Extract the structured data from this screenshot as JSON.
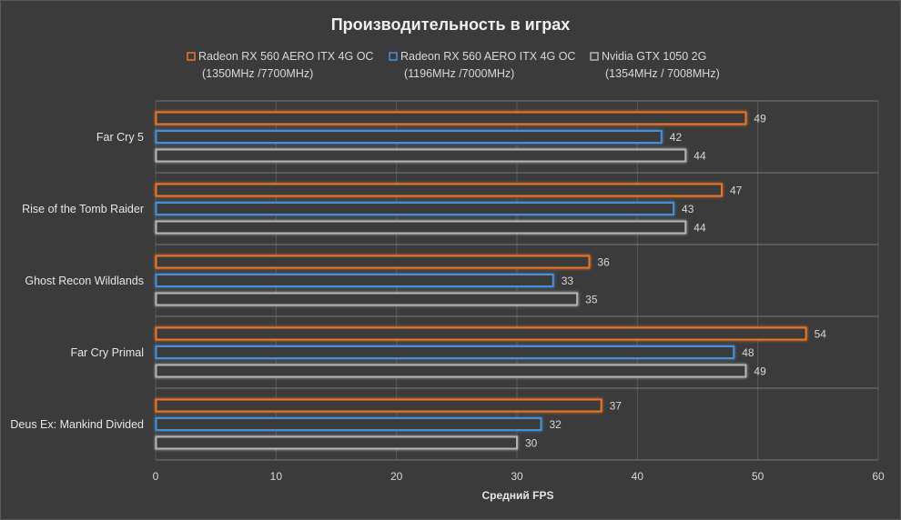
{
  "chart_data": {
    "type": "bar",
    "orientation": "horizontal",
    "title": "Производительность в играх",
    "xlabel": "Средний FPS",
    "ylabel": "",
    "xlim": [
      0,
      60
    ],
    "xticks": [
      0,
      10,
      20,
      30,
      40,
      50,
      60
    ],
    "grid": true,
    "legend_position": "top",
    "categories": [
      "Far Cry 5",
      "Rise of the Tomb Raider",
      "Ghost Recon Wildlands",
      "Far Cry Primal",
      "Deus Ex: Mankind Divided"
    ],
    "series": [
      {
        "name": "Radeon RX 560 AERO ITX 4G OC",
        "name_line2": "(1350MHz /7700MHz)",
        "color": "#e8762b",
        "values": [
          49,
          47,
          36,
          54,
          37
        ]
      },
      {
        "name": "Radeon RX 560 AERO ITX 4G OC",
        "name_line2": "(1196MHz /7000MHz)",
        "color": "#4a8ed6",
        "values": [
          42,
          43,
          33,
          48,
          32
        ]
      },
      {
        "name": "Nvidia GTX 1050 2G",
        "name_line2": "(1354MHz / 7008MHz)",
        "color": "#b4b4b4",
        "values": [
          44,
          44,
          35,
          49,
          30
        ]
      }
    ]
  }
}
